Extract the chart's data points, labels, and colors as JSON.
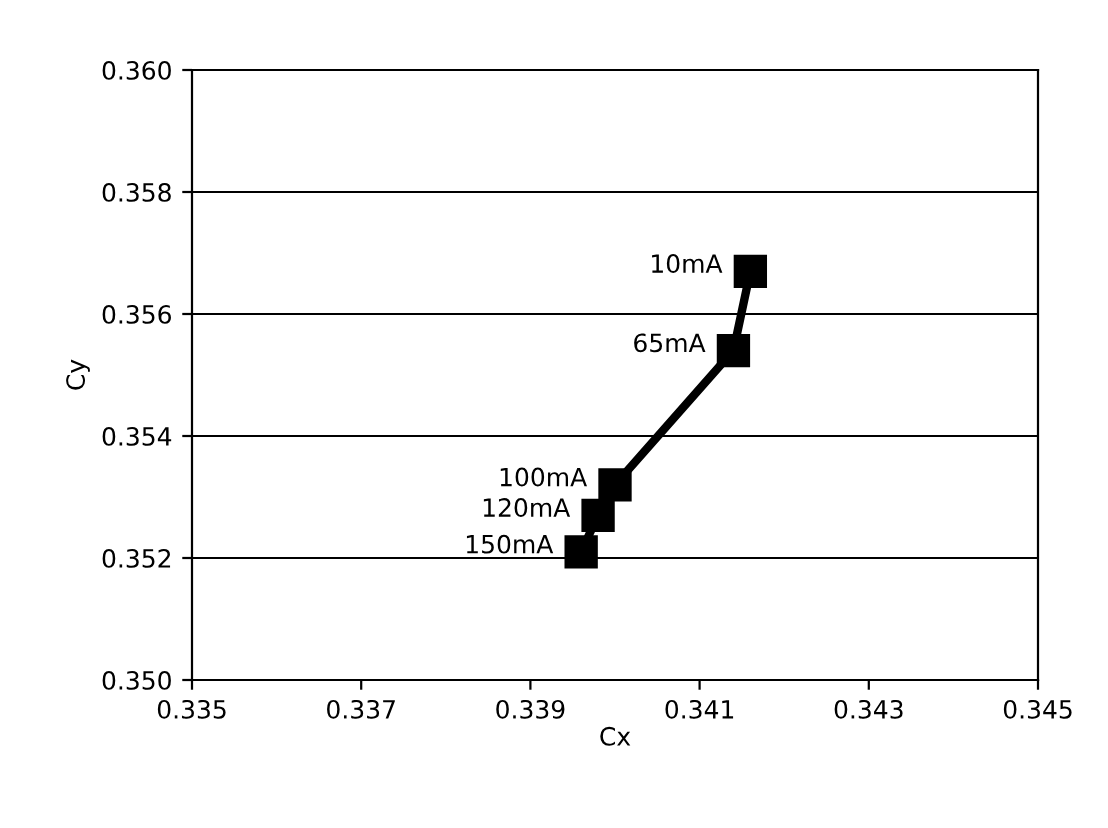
{
  "chart_data": {
    "type": "line",
    "xlabel": "Cx",
    "ylabel": "Cy",
    "x": [
      0.3416,
      0.3414,
      0.34,
      0.3398,
      0.3396
    ],
    "series": [
      {
        "color": "#000000",
        "values": [
          0.3567,
          0.3554,
          0.3532,
          0.3527,
          0.3521
        ]
      }
    ],
    "xlim": [
      0.335,
      0.345
    ],
    "xticks": [
      0.335,
      0.337,
      0.339,
      0.341,
      0.343,
      0.345
    ],
    "ylim": [
      0.35,
      0.36
    ],
    "yticks": [
      {
        "value": 0.35,
        "label": "0.350"
      },
      {
        "value": 0.352,
        "label": "0.352"
      },
      {
        "value": 0.354,
        "label": "0.354"
      },
      {
        "value": 0.356,
        "label": "0.356"
      },
      {
        "value": 0.358,
        "label": "0.358"
      },
      {
        "value": 0.36,
        "label": "0.360"
      }
    ],
    "grid": "y",
    "marker": "square",
    "line_style": "solid",
    "annotations": [
      {
        "text": "10mA",
        "x": 0.3416,
        "y": 0.3567
      },
      {
        "text": "65mA",
        "x": 0.3414,
        "y": 0.3554
      },
      {
        "text": "100mA",
        "x": 0.34,
        "y": 0.3532
      },
      {
        "text": "120mA",
        "x": 0.3398,
        "y": 0.3527
      },
      {
        "text": "150mA",
        "x": 0.3396,
        "y": 0.3521
      }
    ]
  }
}
